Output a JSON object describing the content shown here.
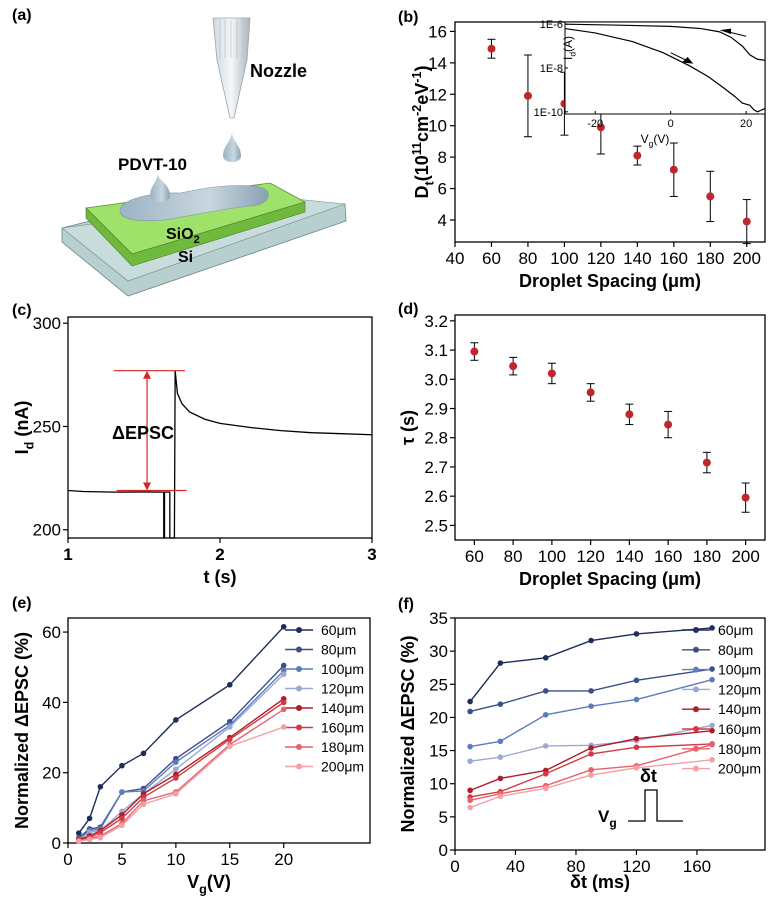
{
  "panel_labels": {
    "a": "(a)",
    "b": "(b)",
    "c": "(c)",
    "d": "(d)",
    "e": "(e)",
    "f": "(f)"
  },
  "schematic": {
    "nozzle_label": "Nozzle",
    "material_label": "PDVT-10",
    "sio2_label": "SiO",
    "sio2_sub": "2",
    "si_label": "Si"
  },
  "colors": {
    "red_marker": "#c0272d",
    "line_c": "#d62728",
    "black": "#000000"
  },
  "chart_data": [
    {
      "id": "b",
      "type": "scatter",
      "title": "",
      "xlabel": "Droplet Spacing (μm)",
      "ylabel_parts": [
        "D",
        "t",
        "(10",
        "11",
        "cm",
        "-2",
        "eV",
        "-1",
        ")"
      ],
      "x": [
        60,
        80,
        100,
        120,
        140,
        160,
        180,
        200
      ],
      "y": [
        14.9,
        11.9,
        11.4,
        9.9,
        8.1,
        7.2,
        5.5,
        3.9
      ],
      "err": [
        0.6,
        2.6,
        2.0,
        1.7,
        0.6,
        1.7,
        1.6,
        1.4
      ],
      "xlim": [
        40,
        210
      ],
      "ylim": [
        2.6,
        16.6
      ],
      "xticks": [
        "40",
        "60",
        "80",
        "100",
        "120",
        "140",
        "160",
        "180",
        "200"
      ],
      "yticks": [
        "4",
        "6",
        "8",
        "10",
        "12",
        "14",
        "16"
      ],
      "inset": {
        "xlabel_parts": [
          "V",
          "g",
          "(V)"
        ],
        "ylabel_parts": [
          "I",
          "d",
          "(A)"
        ],
        "xticks": [
          "-20",
          "0",
          "20"
        ],
        "yticks": [
          "1E-6",
          "1E-8",
          "1E-10"
        ],
        "xlim": [
          -28,
          25
        ],
        "ylim_log": [
          -10.1,
          -5.9
        ],
        "curve_upper": [
          [
            -28,
            -6.0
          ],
          [
            -15,
            -6.04
          ],
          [
            0,
            -6.1
          ],
          [
            8,
            -6.2
          ],
          [
            13,
            -6.35
          ],
          [
            16,
            -6.6
          ],
          [
            19,
            -7.0
          ],
          [
            21,
            -7.4
          ],
          [
            23,
            -7.6
          ],
          [
            25,
            -7.65
          ]
        ],
        "curve_lower": [
          [
            -28,
            -6.2
          ],
          [
            -20,
            -6.4
          ],
          [
            -10,
            -6.8
          ],
          [
            -2,
            -7.3
          ],
          [
            5,
            -7.9
          ],
          [
            10,
            -8.4
          ],
          [
            14,
            -8.9
          ],
          [
            17,
            -9.3
          ],
          [
            19,
            -9.6
          ],
          [
            21,
            -9.7
          ],
          [
            22,
            -9.9
          ],
          [
            23,
            -10.0
          ],
          [
            25,
            -9.85
          ]
        ]
      }
    },
    {
      "id": "c",
      "type": "line",
      "title": "",
      "xlabel": "t (s)",
      "ylabel_parts": [
        "I",
        "d",
        " (nA)"
      ],
      "xlim": [
        1,
        3
      ],
      "ylim": [
        196,
        303
      ],
      "xticks": [
        "1",
        "2",
        "3"
      ],
      "yticks": [
        "200",
        "250",
        "300"
      ],
      "annotation": "ΔEPSC",
      "epsc_low": 219,
      "epsc_high": 277,
      "trace": [
        [
          1,
          219
        ],
        [
          1.1,
          218.5
        ],
        [
          1.3,
          218.2
        ],
        [
          1.5,
          218.3
        ],
        [
          1.63,
          218.2
        ],
        [
          1.63,
          196
        ],
        [
          1.635,
          196
        ],
        [
          1.635,
          218.2
        ],
        [
          1.67,
          218.2
        ],
        [
          1.67,
          196
        ],
        [
          1.7,
          196
        ],
        [
          1.705,
          277
        ],
        [
          1.72,
          266
        ],
        [
          1.75,
          261
        ],
        [
          1.8,
          257
        ],
        [
          1.9,
          253.5
        ],
        [
          2.0,
          251.5
        ],
        [
          2.2,
          249.5
        ],
        [
          2.4,
          248
        ],
        [
          2.6,
          247
        ],
        [
          2.8,
          246.5
        ],
        [
          3.0,
          246
        ]
      ]
    },
    {
      "id": "d",
      "type": "scatter",
      "title": "",
      "xlabel": "Droplet Spacing (μm)",
      "ylabel": "τ (s)",
      "x": [
        60,
        80,
        100,
        120,
        140,
        160,
        180,
        200
      ],
      "y": [
        3.095,
        3.045,
        3.02,
        2.955,
        2.88,
        2.845,
        2.715,
        2.595
      ],
      "err": [
        0.03,
        0.03,
        0.035,
        0.03,
        0.035,
        0.045,
        0.035,
        0.05
      ],
      "xlim": [
        50,
        210
      ],
      "ylim": [
        2.45,
        3.22
      ],
      "xticks": [
        "60",
        "80",
        "100",
        "120",
        "140",
        "160",
        "180",
        "200"
      ],
      "yticks": [
        "2.5",
        "2.6",
        "2.7",
        "2.8",
        "2.9",
        "3.0",
        "3.1",
        "3.2"
      ]
    },
    {
      "id": "e",
      "type": "line",
      "title": "",
      "xlabel_parts": [
        "V",
        "g",
        "(V)"
      ],
      "ylabel": "Normalized ΔEPSC (%)",
      "xlim": [
        0,
        28
      ],
      "ylim": [
        0,
        64
      ],
      "xticks": [
        "0",
        "5",
        "10",
        "15",
        "20"
      ],
      "yticks": [
        "0",
        "20",
        "40",
        "60"
      ],
      "x": [
        1,
        2,
        3,
        5,
        7,
        10,
        15,
        20
      ],
      "series": [
        {
          "name": "60μm",
          "color": "#1f2d5a",
          "values": [
            2.8,
            7,
            16,
            22,
            25.5,
            35,
            45,
            61.5
          ]
        },
        {
          "name": "80μm",
          "color": "#3b4f8a",
          "values": [
            1.5,
            4,
            4.5,
            14.5,
            15.5,
            24,
            34.5,
            50.5
          ]
        },
        {
          "name": "100μm",
          "color": "#5f7bbf",
          "values": [
            1.2,
            3.5,
            4,
            14.5,
            14.8,
            23,
            33.5,
            49
          ]
        },
        {
          "name": "120μm",
          "color": "#9aa8d2",
          "values": [
            1,
            3,
            3.5,
            9,
            14,
            21,
            33,
            48
          ]
        },
        {
          "name": "140μm",
          "color": "#b01c28",
          "values": [
            1,
            2,
            3.5,
            8,
            14,
            19.5,
            30,
            41
          ]
        },
        {
          "name": "160μm",
          "color": "#d23b44",
          "values": [
            0.8,
            1.5,
            3,
            7,
            13,
            18.5,
            29.5,
            40
          ]
        },
        {
          "name": "180μm",
          "color": "#e8616b",
          "values": [
            0.6,
            1.2,
            2,
            5.5,
            12,
            14.5,
            28,
            38
          ]
        },
        {
          "name": "200μm",
          "color": "#f2a0a6",
          "values": [
            0.5,
            1,
            1.5,
            5,
            11,
            14,
            27.5,
            33
          ]
        }
      ]
    },
    {
      "id": "f",
      "type": "line",
      "title": "",
      "xlabel": "δt (ms)",
      "ylabel": "Normalized ΔEPSC (%)",
      "xlim": [
        0,
        205
      ],
      "ylim": [
        0,
        35
      ],
      "xticks": [
        "0",
        "40",
        "80",
        "120",
        "160"
      ],
      "yticks": [
        "0",
        "5",
        "10",
        "15",
        "20",
        "25",
        "30",
        "35"
      ],
      "x": [
        10,
        30,
        60,
        90,
        120,
        170
      ],
      "series": [
        {
          "name": "60μm",
          "color": "#1f2d5a",
          "values": [
            22.4,
            28.2,
            29,
            31.6,
            32.6,
            33.5
          ]
        },
        {
          "name": "80μm",
          "color": "#3b4f8a",
          "values": [
            20.9,
            22,
            24,
            24,
            25.6,
            27.3
          ]
        },
        {
          "name": "100μm",
          "color": "#5f7bbf",
          "values": [
            15.6,
            16.4,
            20.4,
            21.7,
            22.7,
            25.7
          ]
        },
        {
          "name": "120μm",
          "color": "#9aa8d2",
          "values": [
            13.4,
            14,
            15.7,
            15.8,
            16.5,
            18.8
          ]
        },
        {
          "name": "140μm",
          "color": "#b01c28",
          "values": [
            9,
            10.8,
            12,
            15.4,
            16.8,
            18
          ]
        },
        {
          "name": "160μm",
          "color": "#d23b44",
          "values": [
            8,
            8.8,
            11.5,
            14.5,
            15.5,
            16
          ]
        },
        {
          "name": "180μm",
          "color": "#e8616b",
          "values": [
            7.5,
            8.5,
            9.7,
            12.1,
            12.7,
            15.9
          ]
        },
        {
          "name": "200μm",
          "color": "#f2a0a6",
          "values": [
            6.4,
            8.1,
            9.3,
            11.3,
            12.4,
            13.6
          ]
        }
      ],
      "pulse": {
        "vg_main": "V",
        "vg_sub": "g",
        "dt_label": "δt"
      }
    }
  ]
}
